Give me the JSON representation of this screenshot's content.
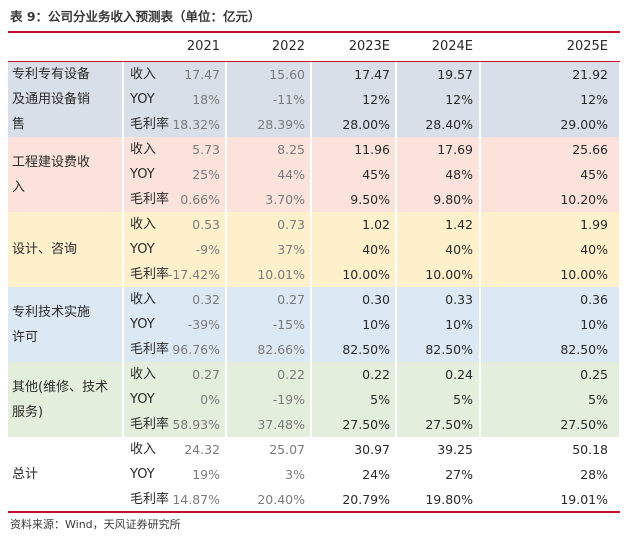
{
  "title": "表 9：公司分业务收入预测表（单位：亿元）",
  "years": [
    "2021",
    "2022",
    "2023E",
    "2024E",
    "2025E"
  ],
  "groups": [
    {
      "name": "专利专有设备\n及通用设备销\n售",
      "color": "#d9dfe8",
      "rows": [
        {
          "metric": "收入",
          "values": [
            "17.47",
            "15.60",
            "17.47",
            "19.57",
            "21.92"
          ]
        },
        {
          "metric": "YOY",
          "values": [
            "18%",
            "-11%",
            "12%",
            "12%",
            "12%"
          ]
        },
        {
          "metric": "毛利率",
          "values": [
            "18.32%",
            "28.39%",
            "28.00%",
            "28.40%",
            "29.00%"
          ]
        }
      ]
    },
    {
      "name": "工程建设费收\n入",
      "color": "#fbe3db",
      "rows": [
        {
          "metric": "收入",
          "values": [
            "5.73",
            "8.25",
            "11.96",
            "17.69",
            "25.66"
          ]
        },
        {
          "metric": "YOY",
          "values": [
            "25%",
            "44%",
            "45%",
            "48%",
            "45%"
          ]
        },
        {
          "metric": "毛利率",
          "values": [
            "0.66%",
            "3.70%",
            "9.50%",
            "9.80%",
            "10.20%"
          ]
        }
      ]
    },
    {
      "name": "设计、咨询",
      "color": "#fff0cc",
      "rows": [
        {
          "metric": "收入",
          "values": [
            "0.53",
            "0.73",
            "1.02",
            "1.42",
            "1.99"
          ]
        },
        {
          "metric": "YOY",
          "values": [
            "-9%",
            "37%",
            "40%",
            "40%",
            "40%"
          ]
        },
        {
          "metric": "毛利率",
          "values": [
            "-17.42%",
            "10.01%",
            "10.00%",
            "10.00%",
            "10.00%"
          ]
        }
      ]
    },
    {
      "name": "专利技术实施\n许可",
      "color": "#dce8f4",
      "rows": [
        {
          "metric": "收入",
          "values": [
            "0.32",
            "0.27",
            "0.30",
            "0.33",
            "0.36"
          ]
        },
        {
          "metric": "YOY",
          "values": [
            "-39%",
            "-15%",
            "10%",
            "10%",
            "10%"
          ]
        },
        {
          "metric": "毛利率",
          "values": [
            "96.76%",
            "82.66%",
            "82.50%",
            "82.50%",
            "82.50%"
          ]
        }
      ]
    },
    {
      "name": "其他(维修、技术\n服务)",
      "color": "#e3efdc",
      "rows": [
        {
          "metric": "收入",
          "values": [
            "0.27",
            "0.22",
            "0.22",
            "0.24",
            "0.25"
          ]
        },
        {
          "metric": "YOY",
          "values": [
            "0%",
            "-19%",
            "5%",
            "5%",
            "5%"
          ]
        },
        {
          "metric": "毛利率",
          "values": [
            "58.93%",
            "37.48%",
            "27.50%",
            "27.50%",
            "27.50%"
          ]
        }
      ]
    },
    {
      "name": "总计",
      "color": "#ffffff",
      "rows": [
        {
          "metric": "收入",
          "values": [
            "24.32",
            "25.07",
            "30.97",
            "39.25",
            "50.18"
          ]
        },
        {
          "metric": "YOY",
          "values": [
            "19%",
            "3%",
            "24%",
            "27%",
            "28%"
          ]
        },
        {
          "metric": "毛利率",
          "values": [
            "14.87%",
            "20.40%",
            "20.79%",
            "19.80%",
            "19.01%"
          ]
        }
      ]
    }
  ],
  "source": "资料来源：Wind，天风证券研究所"
}
